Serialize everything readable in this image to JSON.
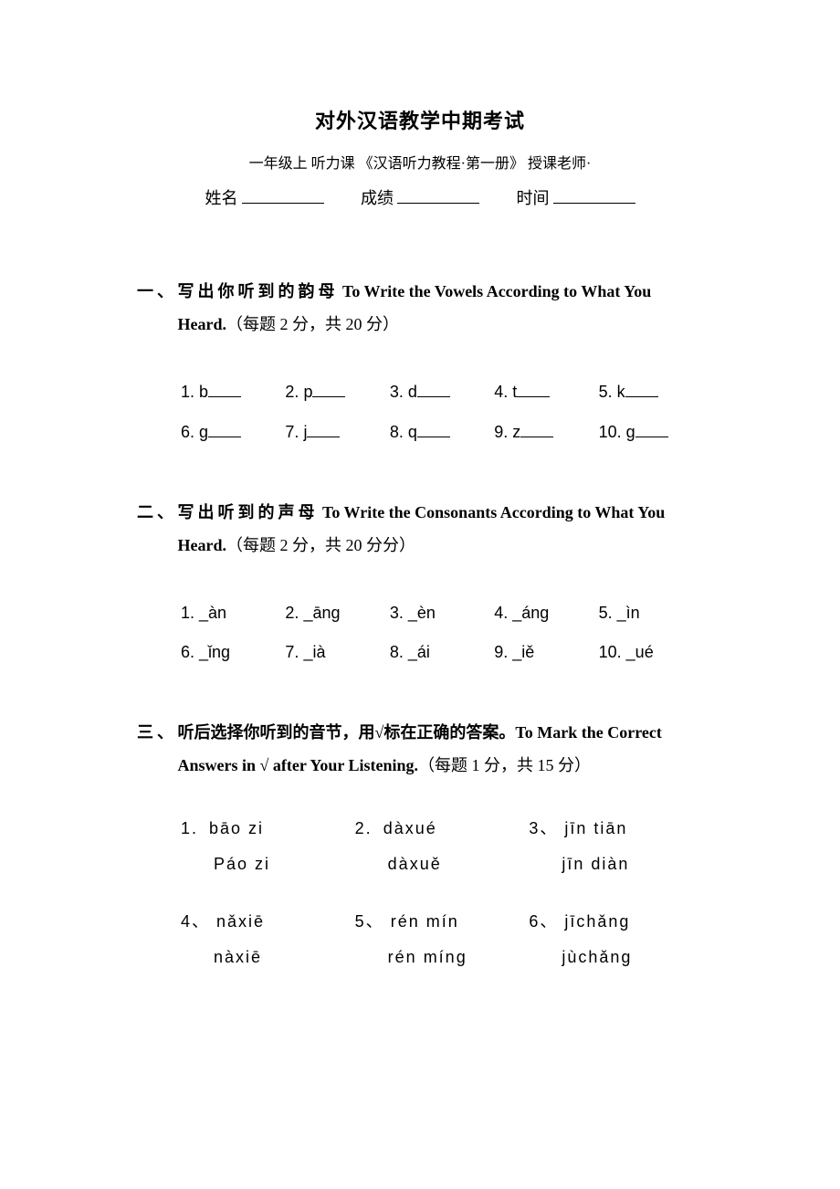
{
  "header": {
    "title": "对外汉语教学中期考试",
    "subtitle": "一年级上  听力课  《汉语听力教程·第一册》    授课老师·",
    "name_label": "姓名",
    "score_label": "成绩",
    "time_label": "时间"
  },
  "section1": {
    "num": "一、",
    "cn": "写出你听到的韵母",
    "en": " To Write the Vowels According to What You Heard.",
    "scoring": "（每题 2 分，共 20 分）",
    "rows": [
      [
        {
          "n": "1.",
          "t": "b"
        },
        {
          "n": "2.",
          "t": "p"
        },
        {
          "n": "3.",
          "t": "d"
        },
        {
          "n": "4.",
          "t": "t"
        },
        {
          "n": "5.",
          "t": "k"
        }
      ],
      [
        {
          "n": "6.",
          "t": "g"
        },
        {
          "n": "7.",
          "t": "j"
        },
        {
          "n": "8.",
          "t": "q"
        },
        {
          "n": "9.",
          "t": "z"
        },
        {
          "n": "10.",
          "t": "g"
        }
      ]
    ]
  },
  "section2": {
    "num": "二、",
    "cn": "写出听到的声母",
    "en": " To Write the Consonants According to What You Heard.",
    "scoring": "（每题 2 分，共 20 分分）",
    "rows": [
      [
        {
          "n": "1.",
          "t": "_àn"
        },
        {
          "n": "2.",
          "t": "_āng"
        },
        {
          "n": "3.",
          "t": "_èn"
        },
        {
          "n": "4.",
          "t": "_áng"
        },
        {
          "n": "5.",
          "t": "_ìn"
        }
      ],
      [
        {
          "n": "6.",
          "t": "_ǐng"
        },
        {
          "n": "7.",
          "t": "_ià"
        },
        {
          "n": "8.",
          "t": "_ái"
        },
        {
          "n": "9.",
          "t": "_iě"
        },
        {
          "n": "10.",
          "t": "_ué"
        }
      ]
    ]
  },
  "section3": {
    "num": "三、",
    "cn": "听后选择你听到的音节，用√标在正确的答案。",
    "en": "To Mark the Correct Answers in √ after Your Listening.",
    "scoring": "（每题 1 分，共 15 分）",
    "rows": [
      [
        {
          "n": "1.",
          "a": "bāo zi",
          "b": "Páo zi"
        },
        {
          "n": "2.",
          "a": "dàxué",
          "b": "dàxuě"
        },
        {
          "n": "3、",
          "a": "jīn tiān",
          "b": "jīn diàn"
        }
      ],
      [
        {
          "n": "4、",
          "a": "nǎxiē",
          "b": "nàxiē"
        },
        {
          "n": "5、",
          "a": "rén mín",
          "b": "rén míng"
        },
        {
          "n": "6、",
          "a": "jīchǎng",
          "b": "jùchǎng"
        }
      ]
    ]
  }
}
